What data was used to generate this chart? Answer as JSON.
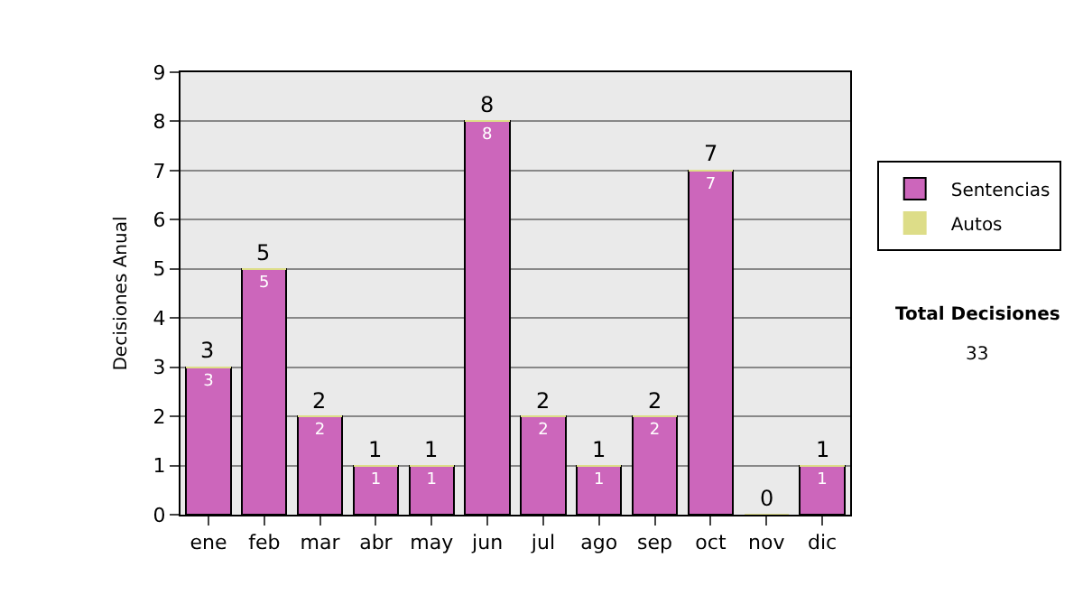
{
  "chart_data": {
    "type": "bar",
    "stacked": true,
    "ylabel": "Decisiones Anual",
    "categories": [
      "ene",
      "feb",
      "mar",
      "abr",
      "may",
      "jun",
      "jul",
      "ago",
      "sep",
      "oct",
      "nov",
      "dic"
    ],
    "series": [
      {
        "name": "Sentencias",
        "color": "#cc66bb",
        "values": [
          3,
          5,
          2,
          1,
          1,
          8,
          2,
          1,
          2,
          7,
          0,
          1
        ],
        "value_labels": [
          "3",
          "5",
          "2",
          "1",
          "1",
          "8",
          "2",
          "1",
          "2",
          "7",
          null,
          "1"
        ]
      },
      {
        "name": "Autos",
        "color": "#dddd88",
        "values": [
          0,
          0,
          0,
          0,
          0,
          0,
          0,
          0,
          0,
          0,
          0,
          0
        ]
      }
    ],
    "totals": [
      "3",
      "5",
      "2",
      "1",
      "1",
      "8",
      "2",
      "1",
      "2",
      "7",
      "0",
      "1"
    ],
    "ylim": [
      0,
      9
    ],
    "yticks": [
      0,
      1,
      2,
      3,
      4,
      5,
      6,
      7,
      8,
      9
    ],
    "grid": "y",
    "legend": "right",
    "annotations": [
      "Total Decisiones",
      "33"
    ]
  }
}
